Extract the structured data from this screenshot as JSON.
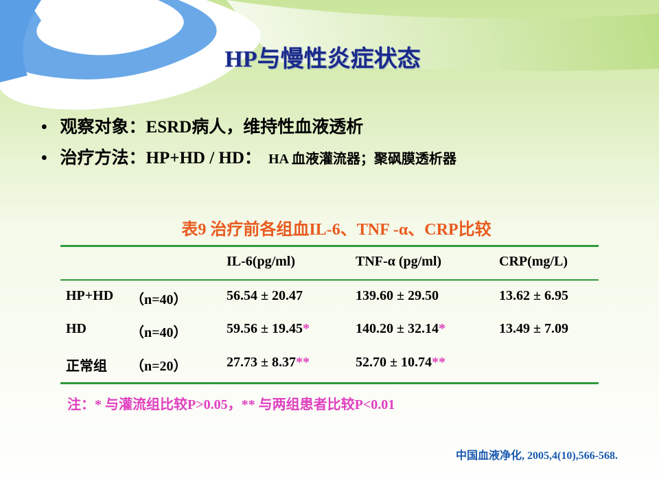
{
  "title": "HP与慢性炎症状态",
  "bullets": [
    {
      "text": "观察对象：ESRD病人，维持性血液透析"
    },
    {
      "text": "治疗方法：HP+HD / HD：",
      "detail": "HA 血液灌流器；聚砜膜透析器"
    }
  ],
  "table": {
    "caption": "表9  治疗前各组血IL-6、TNF -α、CRP比较",
    "header": [
      "IL-6(pg/ml)",
      "TNF-α (pg/ml)",
      "CRP(mg/L)"
    ],
    "rows": [
      {
        "group": "HP+HD",
        "n": "（n=40）",
        "cells": [
          {
            "value": "56.54 ± 20.47"
          },
          {
            "value": "139.60 ± 29.50"
          },
          {
            "value": "13.62 ± 6.95"
          }
        ]
      },
      {
        "group": "HD",
        "n": "（n=40）",
        "cells": [
          {
            "value": "59.56 ± 19.45",
            "mark": "*"
          },
          {
            "value": "140.20 ± 32.14",
            "mark": "*"
          },
          {
            "value": "13.49 ± 7.09"
          }
        ]
      },
      {
        "group": "正常组",
        "n": "（n=20）",
        "cells": [
          {
            "value": "27.73 ± 8.37",
            "mark": "**"
          },
          {
            "value": "52.70 ± 10.74",
            "mark": "**"
          }
        ]
      }
    ]
  },
  "note": "注：* 与灌流组比较P>0.05，** 与两组患者比较P<0.01",
  "citation": "中国血液净化, 2005,4(10),566-568."
}
